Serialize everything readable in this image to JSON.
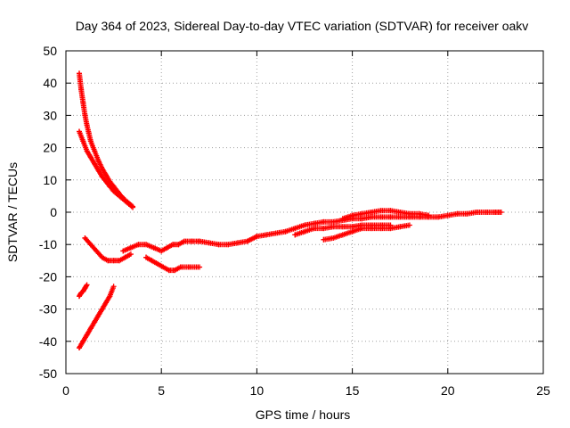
{
  "chart_data": {
    "type": "scatter",
    "title": "Day 364 of 2023, Sidereal Day-to-day VTEC variation (SDTVAR) for receiver oakv",
    "xlabel": "GPS time / hours",
    "ylabel": "SDTVAR / TECUs",
    "xlim": [
      0,
      25
    ],
    "ylim": [
      -50,
      50
    ],
    "xticks": [
      0,
      5,
      10,
      15,
      20,
      25
    ],
    "yticks": [
      -50,
      -40,
      -30,
      -20,
      -10,
      0,
      10,
      20,
      30,
      40,
      50
    ],
    "xtick_labels": [
      "0",
      "5",
      "10",
      "15",
      "20",
      "25"
    ],
    "ytick_labels": [
      "-50",
      "-40",
      "-30",
      "-20",
      "-10",
      "0",
      "10",
      "20",
      "30",
      "40",
      "50"
    ],
    "grid": true,
    "marker": "+",
    "colors": {
      "series": "#ff0000",
      "axes": "#000000",
      "grid": "#a0a0a0",
      "background": "#ffffff"
    },
    "series": [
      {
        "name": "decay-upper",
        "x": [
          0.7,
          0.8,
          0.9,
          1.0,
          1.1,
          1.2,
          1.3,
          1.5,
          1.7,
          1.9,
          2.1,
          2.3,
          2.5,
          2.7,
          2.9,
          3.1,
          3.3,
          3.5
        ],
        "y": [
          43,
          38,
          34,
          30,
          27,
          24.5,
          22,
          19,
          16,
          13.5,
          11.5,
          9.5,
          8,
          6.5,
          5,
          3.8,
          2.8,
          1.8
        ]
      },
      {
        "name": "decay-lower",
        "x": [
          0.7,
          0.9,
          1.1,
          1.3,
          1.5,
          1.7,
          1.9,
          2.1,
          2.3,
          2.5,
          2.7,
          2.9,
          3.1,
          3.3,
          3.5
        ],
        "y": [
          25,
          22,
          19,
          17,
          15,
          13,
          11,
          9.5,
          8,
          6.5,
          5.5,
          4.5,
          3.5,
          2.5,
          1.5
        ]
      },
      {
        "name": "rise-steep",
        "x": [
          0.7,
          0.9,
          1.1,
          1.3,
          1.5,
          1.7,
          1.9,
          2.1,
          2.3,
          2.5
        ],
        "y": [
          -42,
          -40,
          -38,
          -36,
          -34,
          -32,
          -30,
          -28,
          -26,
          -23
        ]
      },
      {
        "name": "rise-short",
        "x": [
          0.7,
          0.8,
          0.9,
          1.0,
          1.1
        ],
        "y": [
          -26,
          -25,
          -24.5,
          -23.5,
          -22.5
        ]
      },
      {
        "name": "dip",
        "x": [
          1.0,
          1.3,
          1.6,
          1.9,
          2.2,
          2.5,
          2.8,
          3.1,
          3.4
        ],
        "y": [
          -8,
          -10,
          -12,
          -14,
          -15,
          -15,
          -15,
          -14,
          -13
        ]
      },
      {
        "name": "band-5h",
        "x": [
          3.0,
          3.4,
          3.8,
          4.2,
          4.6,
          5.0,
          5.3,
          5.6,
          5.9,
          6.2,
          6.6,
          7.0
        ],
        "y": [
          -12,
          -11,
          -10,
          -10,
          -11,
          -12,
          -11,
          -10,
          -10,
          -9,
          -9,
          -9
        ]
      },
      {
        "name": "loop-5h",
        "x": [
          4.2,
          4.5,
          4.8,
          5.1,
          5.4,
          5.7,
          6.0,
          6.5,
          7.0
        ],
        "y": [
          -14,
          -15,
          -16,
          -17,
          -18,
          -18,
          -17,
          -17,
          -17
        ]
      },
      {
        "name": "main-trend",
        "x": [
          7.0,
          7.5,
          8.0,
          8.5,
          9.0,
          9.5,
          10.0,
          10.5,
          11.0,
          11.5,
          12.0,
          12.5,
          13.0,
          13.5,
          14.0,
          14.5,
          15.0,
          15.5,
          16.0,
          16.5,
          17.0,
          17.5,
          18.0,
          18.5,
          19.0,
          19.5,
          20.0,
          20.5,
          21.0,
          21.5,
          22.0,
          22.5,
          22.8
        ],
        "y": [
          -9,
          -9.5,
          -10,
          -10,
          -9.5,
          -9,
          -7.5,
          -7,
          -6.5,
          -6,
          -5,
          -4,
          -3.5,
          -3,
          -3,
          -2.5,
          -2,
          -2,
          -1.5,
          -1.5,
          -1.5,
          -1.5,
          -1.5,
          -1.5,
          -1.5,
          -1.5,
          -1,
          -0.5,
          -0.5,
          0,
          0,
          0,
          0
        ]
      },
      {
        "name": "lower-trend",
        "x": [
          12.0,
          12.5,
          13.0,
          13.5,
          14.0,
          14.5,
          15.0,
          15.5,
          16.0,
          16.5,
          17.0
        ],
        "y": [
          -7,
          -6,
          -5,
          -5,
          -4.5,
          -4.5,
          -4.5,
          -4,
          -4,
          -4,
          -4
        ]
      },
      {
        "name": "upper-band",
        "x": [
          14.5,
          15.0,
          15.5,
          16.0,
          16.5,
          17.0,
          17.5,
          18.0,
          18.5,
          19.0
        ],
        "y": [
          -2,
          -1,
          -0.5,
          0,
          0.5,
          0.5,
          0,
          -0.5,
          -0.5,
          -1
        ]
      },
      {
        "name": "lower-spurs",
        "x": [
          13.5,
          14.0,
          14.5,
          15.0,
          15.5,
          16.0,
          16.5,
          17.0,
          17.5,
          18.0
        ],
        "y": [
          -8.5,
          -8,
          -7,
          -6,
          -5,
          -5,
          -5,
          -5,
          -4.5,
          -4
        ]
      }
    ]
  }
}
